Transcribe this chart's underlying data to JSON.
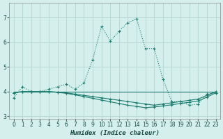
{
  "xlabel": "Humidex (Indice chaleur)",
  "bg_color": "#d4efec",
  "grid_color": "#b8d8d4",
  "line_color": "#1a7a6e",
  "xlim": [
    -0.5,
    23.5
  ],
  "ylim": [
    2.9,
    7.6
  ],
  "yticks": [
    3,
    4,
    5,
    6,
    7
  ],
  "xticks": [
    0,
    1,
    2,
    3,
    4,
    5,
    6,
    7,
    8,
    9,
    10,
    11,
    12,
    13,
    14,
    15,
    16,
    17,
    18,
    19,
    20,
    21,
    22,
    23
  ],
  "line1_x": [
    0,
    1,
    2,
    3,
    4,
    5,
    6,
    7,
    8,
    9,
    10,
    11,
    12,
    13,
    14,
    15,
    16,
    17,
    18,
    19,
    20,
    21,
    22,
    23
  ],
  "line1_y": [
    3.75,
    4.2,
    4.0,
    4.0,
    4.1,
    4.2,
    4.3,
    4.1,
    4.35,
    5.3,
    6.65,
    6.05,
    6.45,
    6.8,
    6.95,
    5.75,
    5.75,
    4.5,
    3.6,
    3.6,
    3.45,
    3.5,
    3.9,
    3.95
  ],
  "line2_x": [
    0,
    1,
    2,
    3,
    4,
    5,
    6,
    7,
    8,
    9,
    10,
    11,
    12,
    13,
    14,
    15,
    16,
    17,
    18,
    19,
    20,
    21,
    22,
    23
  ],
  "line2_y": [
    3.95,
    4.0,
    4.0,
    4.0,
    4.0,
    3.98,
    3.95,
    3.9,
    3.85,
    3.8,
    3.75,
    3.7,
    3.65,
    3.6,
    3.55,
    3.5,
    3.45,
    3.5,
    3.55,
    3.6,
    3.65,
    3.7,
    3.85,
    4.0
  ],
  "line3_x": [
    0,
    23
  ],
  "line3_y": [
    4.0,
    4.0
  ],
  "line4_x": [
    0,
    1,
    2,
    3,
    4,
    5,
    6,
    7,
    8,
    9,
    10,
    11,
    12,
    13,
    14,
    15,
    16,
    17,
    18,
    19,
    20,
    21,
    22,
    23
  ],
  "line4_y": [
    3.95,
    4.0,
    4.0,
    4.0,
    4.0,
    3.97,
    3.93,
    3.87,
    3.8,
    3.73,
    3.66,
    3.59,
    3.52,
    3.45,
    3.4,
    3.35,
    3.38,
    3.42,
    3.47,
    3.52,
    3.57,
    3.62,
    3.78,
    3.95
  ]
}
